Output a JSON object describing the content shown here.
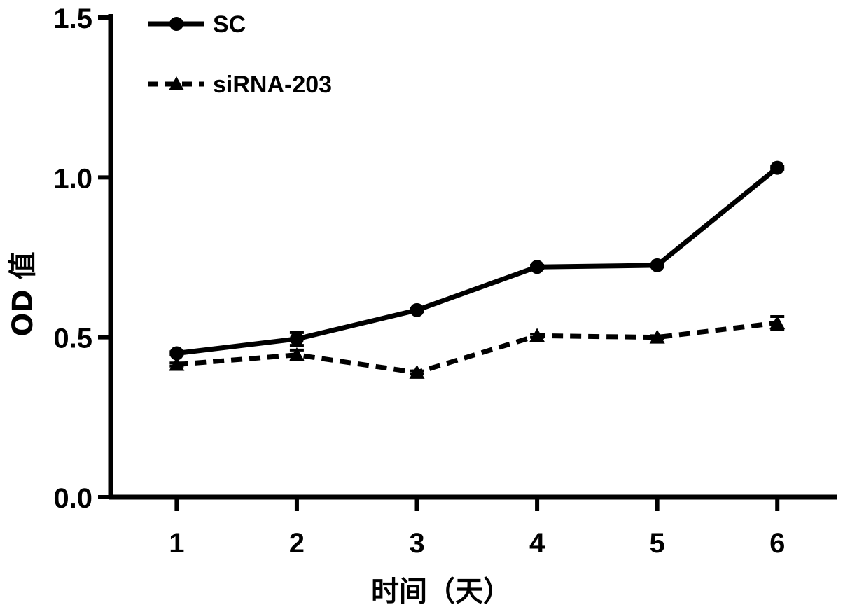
{
  "chart_data": {
    "type": "line",
    "title": "",
    "xlabel": "时间（天）",
    "ylabel": "OD 值",
    "categories": [
      "1",
      "2",
      "3",
      "4",
      "5",
      "6"
    ],
    "x": [
      1,
      2,
      3,
      4,
      5,
      6
    ],
    "xlim": [
      0.45,
      6.5
    ],
    "ylim": [
      0,
      1.5
    ],
    "yticks": [
      "0.0",
      "0.5",
      "1.0",
      "1.5"
    ],
    "yticks_values": [
      0,
      0.5,
      1.0,
      1.5
    ],
    "grid": false,
    "legend_position": "top-left",
    "series": [
      {
        "name": "SC",
        "values": [
          0.45,
          0.495,
          0.585,
          0.72,
          0.725,
          1.03
        ],
        "errors": [
          0.005,
          0.02,
          0.005,
          0.005,
          0.005,
          0.005
        ],
        "marker": "circle",
        "line_style": "solid",
        "color": "#000000"
      },
      {
        "name": "siRNA-203",
        "values": [
          0.415,
          0.445,
          0.39,
          0.505,
          0.5,
          0.545
        ],
        "errors": [
          0.005,
          0.015,
          0.005,
          0.005,
          0.005,
          0.02
        ],
        "marker": "triangle",
        "line_style": "dashed",
        "color": "#000000"
      }
    ]
  }
}
